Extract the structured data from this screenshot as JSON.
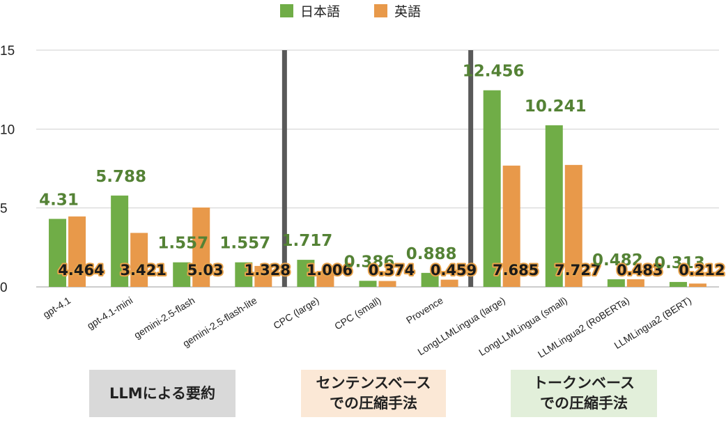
{
  "chart_data": {
    "type": "bar",
    "categories": [
      "gpt-4.1",
      "gpt-4.1-mini",
      "gemini-2.5-flash",
      "gemini-2.5-flash-lite",
      "CPC (large)",
      "CPC (small)",
      "Provence",
      "LongLLMLingua (large)",
      "LongLLMLingua (small)",
      "LLMLingua2 (RoBERTa)",
      "LLMLingua2 (BERT)"
    ],
    "series": [
      {
        "name": "日本語",
        "color": "#70ad47",
        "values": [
          4.31,
          5.788,
          1.557,
          1.557,
          1.717,
          0.386,
          0.888,
          12.456,
          10.241,
          0.482,
          0.313
        ],
        "labels": [
          "4.31",
          "5.788",
          "1.557",
          "1.557",
          "1.717",
          "0.386",
          "0.888",
          "12.456",
          "10.241",
          "0.482",
          "0.313"
        ]
      },
      {
        "name": "英語",
        "color": "#e8994a",
        "values": [
          4.464,
          3.421,
          5.03,
          1.328,
          1.006,
          0.374,
          0.459,
          7.685,
          7.727,
          0.483,
          0.212
        ],
        "labels": [
          "4.464",
          "3.421",
          "5.03",
          "1.328",
          "1.006",
          "0.374",
          "0.459",
          "7.685",
          "7.727",
          "0.483",
          "0.212"
        ]
      }
    ],
    "yticks": [
      "0",
      "5",
      "10",
      "15"
    ],
    "ylim": [
      0,
      15
    ],
    "grid": true,
    "legend_position": "top-center",
    "separators_after": [
      "gemini-2.5-flash-lite",
      "Provence"
    ],
    "groups": [
      {
        "label": "LLMによる要約",
        "color": "#d9d9d9"
      },
      {
        "label": "センテンスベース\nでの圧縮手法",
        "color": "#fbe8d6"
      },
      {
        "label": "トークンベース\nでの圧縮手法",
        "color": "#e2efda"
      }
    ]
  }
}
